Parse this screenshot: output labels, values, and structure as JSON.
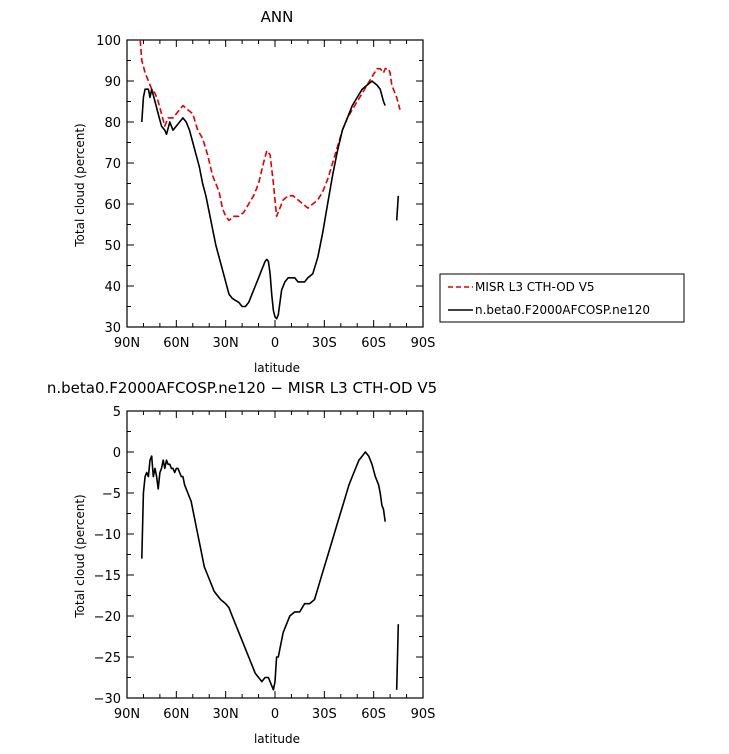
{
  "chart_data": [
    {
      "type": "line",
      "title": "ANN",
      "xlabel": "latitude",
      "ylabel": "Total cloud (percent)",
      "xlim": [
        90,
        -90
      ],
      "ylim": [
        30,
        100
      ],
      "x_ticks": [
        90,
        60,
        30,
        0,
        -30,
        -60,
        -90
      ],
      "x_tick_labels": [
        "90N",
        "60N",
        "30N",
        "0",
        "30S",
        "60S",
        "90S"
      ],
      "y_ticks": [
        30,
        40,
        50,
        60,
        70,
        80,
        90,
        100
      ],
      "y_tick_labels": [
        "30",
        "40",
        "50",
        "60",
        "70",
        "80",
        "90",
        "100"
      ],
      "legend_position": "right",
      "series": [
        {
          "name": "MISR L3 CTH-OD V5",
          "color": "#e00000",
          "dash": true,
          "segments": [
            [
              [
                82,
                100
              ],
              [
                81,
                95
              ],
              [
                79,
                92
              ],
              [
                77,
                90
              ],
              [
                75,
                88
              ],
              [
                73,
                87
              ],
              [
                71,
                85
              ],
              [
                69,
                82
              ],
              [
                67,
                79
              ],
              [
                65,
                81
              ],
              [
                62,
                81
              ],
              [
                60,
                82
              ],
              [
                58,
                83
              ],
              [
                56,
                84
              ],
              [
                53,
                83
              ],
              [
                50,
                82
              ],
              [
                47,
                78
              ],
              [
                44,
                76
              ],
              [
                41,
                72
              ],
              [
                38,
                67
              ],
              [
                36,
                65
              ],
              [
                34,
                63
              ],
              [
                32,
                59
              ],
              [
                30,
                57
              ],
              [
                28,
                56
              ],
              [
                25,
                57
              ],
              [
                22,
                57
              ],
              [
                19,
                58
              ],
              [
                16,
                60
              ],
              [
                13,
                62
              ],
              [
                10,
                65
              ],
              [
                7,
                70
              ],
              [
                5,
                73
              ],
              [
                3,
                72
              ],
              [
                1,
                65
              ],
              [
                -1,
                57
              ],
              [
                -3,
                59
              ],
              [
                -5,
                61
              ],
              [
                -8,
                62
              ],
              [
                -11,
                62
              ],
              [
                -14,
                61
              ],
              [
                -17,
                60
              ],
              [
                -20,
                59
              ],
              [
                -23,
                60
              ],
              [
                -26,
                61
              ],
              [
                -29,
                63
              ],
              [
                -32,
                66
              ],
              [
                -35,
                70
              ],
              [
                -38,
                74
              ],
              [
                -41,
                78
              ],
              [
                -44,
                81
              ],
              [
                -47,
                83
              ],
              [
                -50,
                85
              ],
              [
                -53,
                87
              ],
              [
                -56,
                89
              ],
              [
                -59,
                91
              ],
              [
                -62,
                93
              ],
              [
                -64,
                93
              ],
              [
                -66,
                92
              ],
              [
                -67,
                93
              ],
              [
                -69,
                93
              ],
              [
                -70,
                92
              ],
              [
                -71,
                89
              ],
              [
                -72,
                88
              ],
              [
                -74,
                86
              ],
              [
                -76,
                83
              ]
            ]
          ]
        },
        {
          "name": "n.beta0.F2000AFCOSP.ne120",
          "color": "#000000",
          "dash": false,
          "segments": [
            [
              [
                81,
                80
              ],
              [
                80,
                86
              ],
              [
                79,
                88
              ],
              [
                77,
                88
              ],
              [
                76,
                86
              ],
              [
                75,
                88
              ],
              [
                73,
                85
              ],
              [
                71,
                82
              ],
              [
                69,
                79
              ],
              [
                67,
                78
              ],
              [
                66,
                77
              ],
              [
                64,
                80
              ],
              [
                62,
                78
              ],
              [
                60,
                79
              ],
              [
                58,
                80
              ],
              [
                56,
                81
              ],
              [
                54,
                80
              ],
              [
                52,
                78
              ],
              [
                50,
                75
              ],
              [
                48,
                72
              ],
              [
                46,
                69
              ],
              [
                44,
                65
              ],
              [
                42,
                62
              ],
              [
                40,
                58
              ],
              [
                38,
                54
              ],
              [
                36,
                50
              ],
              [
                34,
                47
              ],
              [
                32,
                44
              ],
              [
                30,
                41
              ],
              [
                28,
                38
              ],
              [
                26,
                37
              ],
              [
                24,
                36.5
              ],
              [
                22,
                36
              ],
              [
                20,
                35
              ],
              [
                18,
                35
              ],
              [
                16,
                36
              ],
              [
                14,
                38
              ],
              [
                12,
                40
              ],
              [
                10,
                42
              ],
              [
                8,
                44
              ],
              [
                6,
                46
              ],
              [
                5,
                46.5
              ],
              [
                4,
                46
              ],
              [
                3,
                43
              ],
              [
                2,
                38
              ],
              [
                1,
                34
              ],
              [
                0,
                32.5
              ],
              [
                -1,
                32
              ],
              [
                -2,
                33
              ],
              [
                -4,
                39
              ],
              [
                -6,
                41
              ],
              [
                -8,
                42
              ],
              [
                -10,
                42
              ],
              [
                -12,
                42
              ],
              [
                -14,
                41
              ],
              [
                -16,
                41
              ],
              [
                -18,
                41
              ],
              [
                -20,
                42
              ],
              [
                -23,
                43
              ],
              [
                -26,
                47
              ],
              [
                -29,
                53
              ],
              [
                -32,
                60
              ],
              [
                -35,
                67
              ],
              [
                -38,
                73
              ],
              [
                -41,
                78
              ],
              [
                -44,
                81
              ],
              [
                -47,
                84
              ],
              [
                -50,
                86
              ],
              [
                -53,
                88
              ],
              [
                -56,
                89
              ],
              [
                -59,
                90
              ],
              [
                -62,
                89
              ],
              [
                -64,
                88
              ],
              [
                -66,
                85
              ],
              [
                -67,
                84
              ]
            ],
            [
              [
                -74,
                56
              ],
              [
                -75,
                62
              ]
            ]
          ]
        }
      ]
    },
    {
      "type": "line",
      "title": "n.beta0.F2000AFCOSP.ne120 − MISR L3 CTH-OD V5",
      "xlabel": "latitude",
      "ylabel": "Total cloud (percent)",
      "xlim": [
        90,
        -90
      ],
      "ylim": [
        -30,
        5
      ],
      "x_ticks": [
        90,
        60,
        30,
        0,
        -30,
        -60,
        -90
      ],
      "x_tick_labels": [
        "90N",
        "60N",
        "30N",
        "0",
        "30S",
        "60S",
        "90S"
      ],
      "y_ticks": [
        5,
        0,
        -5,
        -10,
        -15,
        -20,
        -25,
        -30
      ],
      "y_tick_labels": [
        "5",
        "0",
        "−5",
        "−10",
        "−15",
        "−20",
        "−25",
        "−30"
      ],
      "series": [
        {
          "color": "#000000",
          "dash": false,
          "segments": [
            [
              [
                81,
                -13
              ],
              [
                80,
                -5
              ],
              [
                79,
                -3
              ],
              [
                78,
                -2.5
              ],
              [
                77,
                -3
              ],
              [
                76,
                -1
              ],
              [
                75,
                -0.5
              ],
              [
                74,
                -3
              ],
              [
                73,
                -2
              ],
              [
                72,
                -3
              ],
              [
                71,
                -4.5
              ],
              [
                70,
                -2.5
              ],
              [
                69,
                -2
              ],
              [
                68,
                -1
              ],
              [
                67,
                -2
              ],
              [
                66,
                -1
              ],
              [
                65,
                -1.5
              ],
              [
                64,
                -1.5
              ],
              [
                63,
                -2
              ],
              [
                62,
                -2
              ],
              [
                61,
                -2.5
              ],
              [
                60,
                -2
              ],
              [
                59,
                -2
              ],
              [
                58,
                -2.5
              ],
              [
                57,
                -3
              ],
              [
                56,
                -3
              ],
              [
                55,
                -4
              ],
              [
                53,
                -5
              ],
              [
                51,
                -6
              ],
              [
                49,
                -8
              ],
              [
                47,
                -10
              ],
              [
                45,
                -12
              ],
              [
                43,
                -14
              ],
              [
                41,
                -15
              ],
              [
                39,
                -16
              ],
              [
                37,
                -17
              ],
              [
                35,
                -17.5
              ],
              [
                33,
                -18
              ],
              [
                30,
                -18.5
              ],
              [
                28,
                -19
              ],
              [
                26,
                -20
              ],
              [
                24,
                -21
              ],
              [
                22,
                -22
              ],
              [
                20,
                -23
              ],
              [
                18,
                -24
              ],
              [
                16,
                -25
              ],
              [
                14,
                -26
              ],
              [
                12,
                -27
              ],
              [
                10,
                -27.5
              ],
              [
                8,
                -28
              ],
              [
                6,
                -27.5
              ],
              [
                4,
                -27.5
              ],
              [
                2,
                -28.5
              ],
              [
                1,
                -29
              ],
              [
                0,
                -28
              ],
              [
                -1,
                -25
              ],
              [
                -2,
                -25
              ],
              [
                -3,
                -24
              ],
              [
                -5,
                -22
              ],
              [
                -7,
                -21
              ],
              [
                -9,
                -20
              ],
              [
                -12,
                -19.5
              ],
              [
                -15,
                -19.5
              ],
              [
                -18,
                -18.5
              ],
              [
                -21,
                -18.5
              ],
              [
                -24,
                -18
              ],
              [
                -27,
                -16
              ],
              [
                -30,
                -14
              ],
              [
                -33,
                -12
              ],
              [
                -36,
                -10
              ],
              [
                -39,
                -8
              ],
              [
                -42,
                -6
              ],
              [
                -45,
                -4
              ],
              [
                -48,
                -2.5
              ],
              [
                -51,
                -1
              ],
              [
                -53,
                -0.5
              ],
              [
                -55,
                0
              ],
              [
                -57,
                -0.5
              ],
              [
                -59,
                -1.5
              ],
              [
                -61,
                -3
              ],
              [
                -63,
                -4
              ],
              [
                -64,
                -5
              ],
              [
                -65,
                -6.5
              ],
              [
                -66,
                -7
              ],
              [
                -67,
                -8.5
              ]
            ],
            [
              [
                -74,
                -29
              ],
              [
                -75,
                -21
              ]
            ]
          ]
        }
      ]
    }
  ],
  "legend": {
    "items": [
      {
        "label": "MISR L3 CTH-OD V5",
        "color": "#e00000",
        "dash": true
      },
      {
        "label": "n.beta0.F2000AFCOSP.ne120",
        "color": "#000000",
        "dash": false
      }
    ]
  }
}
